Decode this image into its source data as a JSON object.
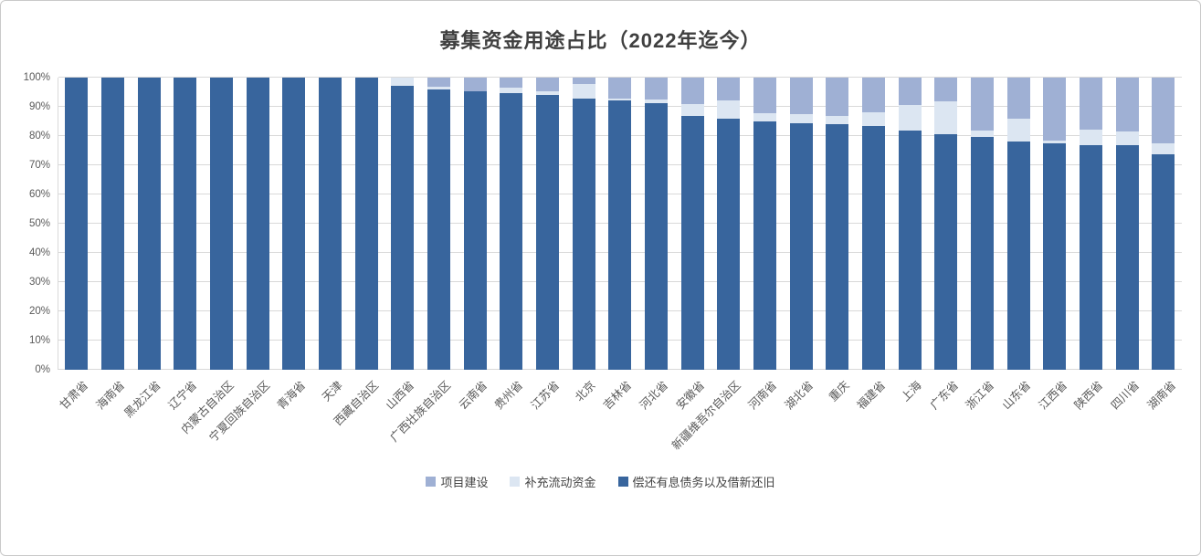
{
  "chart_data": {
    "type": "bar",
    "stacked": true,
    "units": "percent",
    "title": "募集资金用途占比（2022年迄今）",
    "categories": [
      "甘肃省",
      "海南省",
      "黑龙江省",
      "辽宁省",
      "内蒙古自治区",
      "宁夏回族自治区",
      "青海省",
      "天津",
      "西藏自治区",
      "山西省",
      "广西壮族自治区",
      "云南省",
      "贵州省",
      "江苏省",
      "北京",
      "吉林省",
      "河北省",
      "安徽省",
      "新疆维吾尔自治区",
      "河南省",
      "湖北省",
      "重庆",
      "福建省",
      "上海",
      "广东省",
      "浙江省",
      "山东省",
      "江西省",
      "陕西省",
      "四川省",
      "湖南省"
    ],
    "series": [
      {
        "name": "项目建设",
        "color": "#9FB0D4",
        "values": [
          0,
          0,
          0,
          0,
          0,
          0,
          0,
          0,
          0,
          0,
          3.0,
          4.6,
          3.4,
          4.8,
          2.2,
          7.1,
          7.4,
          9.0,
          7.9,
          12.2,
          12.6,
          13.0,
          11.9,
          9.5,
          8.1,
          18.2,
          14.0,
          21.6,
          17.8,
          18.5,
          22.4
        ]
      },
      {
        "name": "补充流动资金",
        "color": "#DCE6F2",
        "values": [
          0,
          0,
          0,
          0,
          0,
          0,
          0,
          0,
          0,
          2.7,
          1.2,
          0,
          2.0,
          1.0,
          4.9,
          0.6,
          1.2,
          4.2,
          6.3,
          2.8,
          3.1,
          3.0,
          4.7,
          8.6,
          11.2,
          2.0,
          7.9,
          0.9,
          5.2,
          4.7,
          3.7
        ]
      },
      {
        "name": "偿还有息债务以及借新还旧",
        "color": "#38659D",
        "values": [
          100,
          100,
          100,
          100,
          100,
          100,
          100,
          100,
          100,
          97.3,
          95.8,
          95.4,
          94.6,
          94.2,
          92.9,
          92.3,
          91.4,
          86.8,
          85.8,
          85.0,
          84.3,
          84.0,
          83.4,
          81.9,
          80.7,
          79.8,
          78.1,
          77.5,
          77.0,
          76.8,
          73.9
        ]
      }
    ],
    "y_axis": {
      "ticks": [
        "0%",
        "10%",
        "20%",
        "30%",
        "40%",
        "50%",
        "60%",
        "70%",
        "80%",
        "90%",
        "100%"
      ],
      "min": 0,
      "max": 100,
      "grid": true
    },
    "legend_position": "bottom",
    "colors": {
      "grid": "#D9D9D9",
      "axis_text": "#595959",
      "title_text": "#404040",
      "frame_border": "#C9C9C9",
      "background": "#FFFFFF"
    }
  }
}
